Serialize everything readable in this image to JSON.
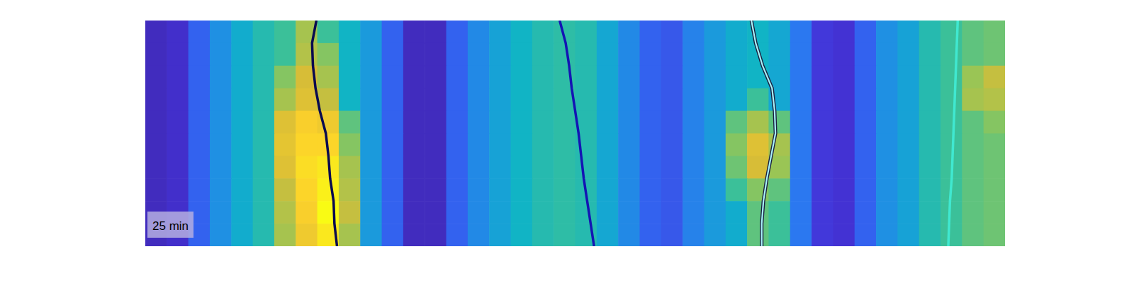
{
  "chart_data": {
    "type": "heatmap",
    "annotation": "25 min",
    "tick_labels": false,
    "xlim": [
      0,
      100
    ],
    "ylim": [
      0,
      100
    ],
    "zlim": [
      0,
      1
    ],
    "cells": [
      [
        0.05,
        0.08,
        0.2,
        0.32,
        0.42,
        0.5,
        0.55,
        0.7,
        0.55,
        0.45,
        0.35,
        0.2,
        0.05,
        0.05,
        0.2,
        0.3,
        0.38,
        0.45,
        0.5,
        0.52,
        0.5,
        0.4,
        0.3,
        0.2,
        0.18,
        0.28,
        0.35,
        0.42,
        0.45,
        0.4,
        0.25,
        0.12,
        0.1,
        0.2,
        0.32,
        0.38,
        0.5,
        0.55,
        0.6,
        0.62
      ],
      [
        0.05,
        0.08,
        0.2,
        0.32,
        0.42,
        0.5,
        0.55,
        0.72,
        0.65,
        0.45,
        0.35,
        0.2,
        0.05,
        0.05,
        0.2,
        0.3,
        0.38,
        0.45,
        0.5,
        0.52,
        0.5,
        0.4,
        0.3,
        0.2,
        0.18,
        0.28,
        0.35,
        0.42,
        0.45,
        0.4,
        0.25,
        0.12,
        0.1,
        0.2,
        0.32,
        0.38,
        0.5,
        0.55,
        0.6,
        0.62
      ],
      [
        0.05,
        0.08,
        0.2,
        0.32,
        0.42,
        0.5,
        0.65,
        0.78,
        0.7,
        0.45,
        0.35,
        0.2,
        0.05,
        0.05,
        0.2,
        0.3,
        0.38,
        0.45,
        0.5,
        0.52,
        0.5,
        0.4,
        0.3,
        0.2,
        0.18,
        0.28,
        0.35,
        0.42,
        0.45,
        0.4,
        0.25,
        0.12,
        0.1,
        0.2,
        0.32,
        0.38,
        0.5,
        0.55,
        0.68,
        0.75
      ],
      [
        0.05,
        0.08,
        0.2,
        0.32,
        0.42,
        0.5,
        0.7,
        0.8,
        0.75,
        0.45,
        0.35,
        0.2,
        0.05,
        0.05,
        0.2,
        0.3,
        0.38,
        0.45,
        0.5,
        0.52,
        0.5,
        0.4,
        0.3,
        0.2,
        0.18,
        0.28,
        0.35,
        0.42,
        0.55,
        0.4,
        0.25,
        0.12,
        0.1,
        0.2,
        0.32,
        0.38,
        0.5,
        0.55,
        0.7,
        0.72
      ],
      [
        0.05,
        0.08,
        0.2,
        0.32,
        0.42,
        0.5,
        0.8,
        0.88,
        0.85,
        0.6,
        0.35,
        0.2,
        0.05,
        0.05,
        0.2,
        0.3,
        0.38,
        0.45,
        0.5,
        0.52,
        0.5,
        0.4,
        0.3,
        0.2,
        0.18,
        0.28,
        0.35,
        0.6,
        0.7,
        0.6,
        0.25,
        0.12,
        0.1,
        0.2,
        0.32,
        0.38,
        0.5,
        0.55,
        0.6,
        0.65
      ],
      [
        0.05,
        0.08,
        0.2,
        0.32,
        0.42,
        0.5,
        0.82,
        0.9,
        0.9,
        0.65,
        0.35,
        0.2,
        0.05,
        0.05,
        0.2,
        0.3,
        0.38,
        0.45,
        0.5,
        0.52,
        0.5,
        0.4,
        0.3,
        0.2,
        0.18,
        0.28,
        0.35,
        0.65,
        0.8,
        0.7,
        0.25,
        0.12,
        0.1,
        0.2,
        0.32,
        0.38,
        0.5,
        0.55,
        0.6,
        0.62
      ],
      [
        0.05,
        0.08,
        0.2,
        0.32,
        0.42,
        0.5,
        0.8,
        0.92,
        0.95,
        0.7,
        0.35,
        0.2,
        0.05,
        0.05,
        0.2,
        0.3,
        0.38,
        0.45,
        0.5,
        0.52,
        0.5,
        0.4,
        0.3,
        0.2,
        0.18,
        0.28,
        0.35,
        0.62,
        0.78,
        0.68,
        0.25,
        0.12,
        0.1,
        0.2,
        0.32,
        0.38,
        0.5,
        0.55,
        0.6,
        0.62
      ],
      [
        0.05,
        0.08,
        0.2,
        0.32,
        0.42,
        0.5,
        0.75,
        0.9,
        0.97,
        0.72,
        0.35,
        0.2,
        0.05,
        0.05,
        0.2,
        0.3,
        0.38,
        0.45,
        0.5,
        0.52,
        0.5,
        0.4,
        0.3,
        0.2,
        0.18,
        0.28,
        0.35,
        0.55,
        0.65,
        0.6,
        0.25,
        0.12,
        0.1,
        0.2,
        0.32,
        0.38,
        0.5,
        0.55,
        0.6,
        0.62
      ],
      [
        0.05,
        0.08,
        0.2,
        0.32,
        0.42,
        0.5,
        0.72,
        0.88,
        1.0,
        0.75,
        0.35,
        0.2,
        0.05,
        0.05,
        0.2,
        0.3,
        0.38,
        0.45,
        0.5,
        0.52,
        0.5,
        0.4,
        0.3,
        0.2,
        0.18,
        0.28,
        0.35,
        0.42,
        0.6,
        0.55,
        0.25,
        0.12,
        0.1,
        0.2,
        0.32,
        0.38,
        0.5,
        0.55,
        0.6,
        0.62
      ],
      [
        0.05,
        0.08,
        0.2,
        0.32,
        0.42,
        0.5,
        0.7,
        0.85,
        0.95,
        0.7,
        0.35,
        0.2,
        0.05,
        0.05,
        0.2,
        0.3,
        0.38,
        0.45,
        0.5,
        0.52,
        0.5,
        0.4,
        0.3,
        0.2,
        0.18,
        0.28,
        0.35,
        0.42,
        0.6,
        0.55,
        0.25,
        0.12,
        0.1,
        0.2,
        0.32,
        0.38,
        0.5,
        0.55,
        0.6,
        0.62
      ]
    ],
    "series": [
      {
        "type": "line",
        "color": "#0a0a50",
        "x": [
          19.9,
          19.4,
          19.5,
          19.8,
          20.3,
          21.0,
          21.3,
          21.5,
          21.9,
          22.0,
          22.3
        ],
        "values": [
          0,
          10,
          20,
          30,
          40,
          50,
          60,
          70,
          80,
          90,
          100
        ]
      },
      {
        "type": "line",
        "color": "#1414b4",
        "x": [
          48.2,
          48.9,
          49.3,
          49.6,
          50.0,
          50.4,
          50.7,
          51.0,
          51.4,
          51.8,
          52.2
        ],
        "values": [
          0,
          10,
          20,
          30,
          40,
          50,
          60,
          70,
          80,
          90,
          100
        ]
      },
      {
        "type": "line",
        "color": "#a8f2f8",
        "x": [
          70.5,
          71.0,
          71.8,
          72.9,
          73.2,
          73.3,
          72.8,
          72.3,
          71.9,
          71.7,
          71.7
        ],
        "values": [
          0,
          10,
          20,
          30,
          40,
          50,
          60,
          70,
          80,
          90,
          100
        ]
      },
      {
        "type": "line",
        "color": "#40e8d0",
        "x": [
          94.5,
          94.4,
          94.3,
          94.2,
          94.1,
          94.0,
          93.9,
          93.8,
          93.6,
          93.5,
          93.4
        ],
        "values": [
          0,
          10,
          20,
          30,
          40,
          50,
          60,
          70,
          80,
          90,
          100
        ]
      }
    ]
  }
}
